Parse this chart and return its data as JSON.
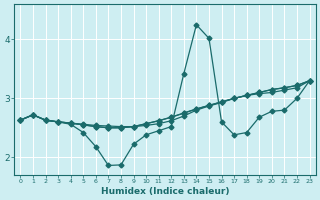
{
  "xlabel": "Humidex (Indice chaleur)",
  "bg_color": "#ceeef2",
  "line_color": "#1a6b6b",
  "grid_color": "#b8dde0",
  "xlim": [
    -0.5,
    23.5
  ],
  "ylim": [
    1.7,
    4.6
  ],
  "yticks": [
    2,
    3,
    4
  ],
  "xticks": [
    0,
    1,
    2,
    3,
    4,
    5,
    6,
    7,
    8,
    9,
    10,
    11,
    12,
    13,
    14,
    15,
    16,
    17,
    18,
    19,
    20,
    21,
    22,
    23
  ],
  "line1_x": [
    0,
    1,
    2,
    3,
    4,
    5,
    6,
    7,
    8,
    9,
    10,
    11,
    12,
    13,
    14,
    15,
    16,
    17,
    18,
    19,
    20,
    21,
    22,
    23
  ],
  "line1_y": [
    2.63,
    2.72,
    2.63,
    2.6,
    2.58,
    2.56,
    2.54,
    2.53,
    2.52,
    2.52,
    2.54,
    2.57,
    2.62,
    2.7,
    2.8,
    2.87,
    2.93,
    3.0,
    3.05,
    3.08,
    3.1,
    3.14,
    3.18,
    3.3
  ],
  "line2_x": [
    0,
    1,
    2,
    3,
    4,
    5,
    6,
    7,
    8,
    9,
    10,
    11,
    12,
    13,
    14,
    15,
    16,
    17,
    18,
    19,
    20,
    21,
    22,
    23
  ],
  "line2_y": [
    2.63,
    2.72,
    2.63,
    2.6,
    2.58,
    2.55,
    2.52,
    2.5,
    2.5,
    2.52,
    2.57,
    2.62,
    2.68,
    2.75,
    2.82,
    2.88,
    2.94,
    3.0,
    3.05,
    3.1,
    3.15,
    3.18,
    3.22,
    3.3
  ],
  "line3_x": [
    0,
    1,
    2,
    3,
    4,
    5,
    6,
    7,
    8,
    9,
    10,
    11,
    12,
    13,
    14,
    15,
    16,
    17,
    18,
    19,
    20,
    21,
    22,
    23
  ],
  "line3_y": [
    2.63,
    2.72,
    2.63,
    2.6,
    2.58,
    2.55,
    2.52,
    2.5,
    2.5,
    2.52,
    2.57,
    2.62,
    2.68,
    2.75,
    2.82,
    2.88,
    2.94,
    3.0,
    3.05,
    3.1,
    3.15,
    3.18,
    3.22,
    3.3
  ],
  "line4_x": [
    0,
    1,
    2,
    3,
    4,
    5,
    6,
    7,
    8,
    9,
    10,
    11,
    12,
    13,
    14,
    15,
    16,
    17,
    18,
    19,
    20,
    21,
    22,
    23
  ],
  "line4_y": [
    2.63,
    2.72,
    2.63,
    2.6,
    2.56,
    2.42,
    2.18,
    1.86,
    1.87,
    2.22,
    2.38,
    2.45,
    2.52,
    3.42,
    4.25,
    4.02,
    2.6,
    2.38,
    2.42,
    2.68,
    2.78,
    2.8,
    3.0,
    3.3
  ]
}
